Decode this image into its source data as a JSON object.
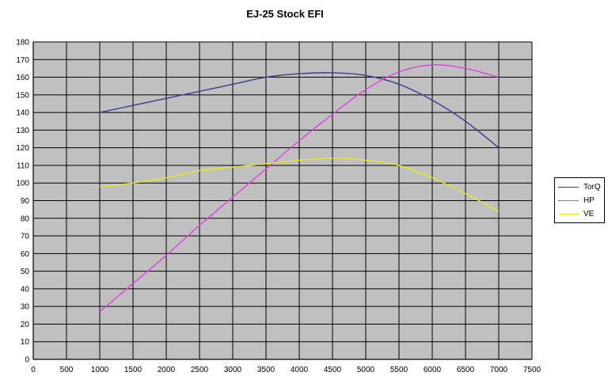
{
  "chart_data": {
    "type": "line",
    "title": "EJ-25 Stock EFI",
    "xlabel": "",
    "ylabel": "",
    "xlim": [
      0,
      7500
    ],
    "ylim": [
      0,
      180
    ],
    "x_ticks": [
      0,
      500,
      1000,
      1500,
      2000,
      2500,
      3000,
      3500,
      4000,
      4500,
      5000,
      5500,
      6000,
      6500,
      7000,
      7500
    ],
    "y_ticks": [
      0,
      10,
      20,
      30,
      40,
      50,
      60,
      70,
      80,
      90,
      100,
      110,
      120,
      130,
      140,
      150,
      160,
      170,
      180
    ],
    "grid": true,
    "plot_background": "#c0c0c0",
    "legend_position": "right",
    "x": [
      1000,
      1500,
      2000,
      2500,
      3000,
      3500,
      4000,
      4500,
      5000,
      5500,
      6000,
      6500,
      7000
    ],
    "series": [
      {
        "name": "TorQ",
        "color": "#3c3c8c",
        "values": [
          140,
          144,
          148,
          152,
          156,
          160,
          162,
          162.5,
          161,
          156,
          147,
          135,
          120
        ]
      },
      {
        "name": "HP",
        "color": "#e040e0",
        "values": [
          27,
          43,
          59,
          76,
          92,
          108,
          124,
          139,
          153,
          163,
          167,
          165,
          160
        ]
      },
      {
        "name": "VE",
        "color": "#e8e820",
        "values": [
          98,
          100,
          103,
          107,
          109,
          111,
          113,
          114,
          113,
          110,
          103,
          94,
          84
        ]
      }
    ]
  }
}
